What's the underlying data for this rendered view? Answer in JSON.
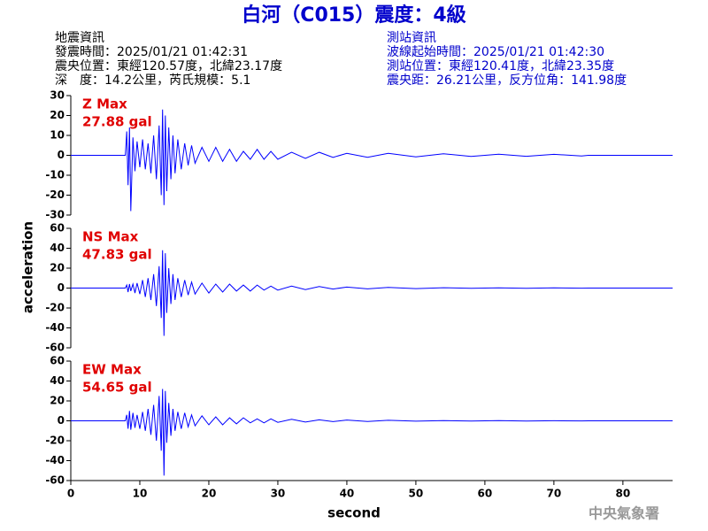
{
  "header": {
    "title": "白河（C015）震度：4級",
    "left": [
      "地震資訊",
      "發震時間：2025/01/21 01:42:31",
      "震央位置：東經120.57度，北緯23.17度",
      "深　度：14.2公里，芮氏規模：5.1"
    ],
    "right": [
      "測站資訊",
      "波線起始時間：2025/01/21 01:42:30",
      "測站位置：東經120.41度，北緯23.35度",
      "震央距：26.21公里，反方位角：141.98度"
    ]
  },
  "footer": "中央氣象署",
  "chart_data": [
    {
      "type": "line",
      "annotations": [
        "Z Max",
        "27.88 gal"
      ],
      "color": "#0000ff",
      "xlim": [
        0,
        87.2
      ],
      "ylim": [
        -30,
        30
      ],
      "yticks": [
        -30,
        -20,
        -10,
        0,
        10,
        20,
        30
      ],
      "x": [
        0,
        7.9,
        8.1,
        8.3,
        8.5,
        8.7,
        9.0,
        9.3,
        9.6,
        10.0,
        10.4,
        10.8,
        11.2,
        11.6,
        12.0,
        12.4,
        12.8,
        13.1,
        13.3,
        13.5,
        13.7,
        13.9,
        14.2,
        14.5,
        14.8,
        15.1,
        15.5,
        16.0,
        16.5,
        17.0,
        17.5,
        18.0,
        19.0,
        20.0,
        21.0,
        22.0,
        23.0,
        24.0,
        25.0,
        26.0,
        27.0,
        28.0,
        29.0,
        30.0,
        32,
        34,
        36,
        38,
        40,
        43,
        46,
        50,
        54,
        58,
        62,
        66,
        70,
        74,
        75,
        87.2
      ],
      "values": [
        0,
        0,
        12,
        -15,
        14,
        -28,
        9,
        -8,
        7,
        -6,
        8,
        -7,
        6,
        -9,
        10,
        -12,
        15,
        -20,
        23,
        -25,
        20,
        -18,
        14,
        -12,
        10,
        -9,
        8,
        -7,
        6,
        -5,
        5,
        -4,
        4,
        -3,
        4,
        -3,
        3,
        -3,
        2,
        -2,
        3,
        -2,
        2,
        -2,
        1.5,
        -1.5,
        1.5,
        -1,
        1,
        -1,
        1,
        -0.8,
        0.8,
        -0.6,
        0.6,
        -0.5,
        0.5,
        -0.3,
        0,
        0
      ]
    },
    {
      "type": "line",
      "annotations": [
        "NS Max",
        "47.83 gal"
      ],
      "ylabel": "acceleration",
      "color": "#0000ff",
      "xlim": [
        0,
        87.2
      ],
      "ylim": [
        -60,
        60
      ],
      "yticks": [
        -60,
        -40,
        -20,
        0,
        20,
        40,
        60
      ],
      "x": [
        0,
        7.9,
        8.1,
        8.3,
        8.5,
        8.7,
        9.0,
        9.3,
        9.6,
        10.0,
        10.4,
        10.8,
        11.2,
        11.6,
        12.0,
        12.4,
        12.8,
        13.1,
        13.3,
        13.5,
        13.7,
        13.9,
        14.2,
        14.5,
        14.8,
        15.1,
        15.5,
        16.0,
        16.5,
        17.0,
        17.5,
        18.0,
        19.0,
        20.0,
        21.0,
        22.0,
        23.0,
        24.0,
        25.0,
        26.0,
        27.0,
        28.0,
        29.0,
        30.0,
        32,
        34,
        36,
        38,
        40,
        43,
        46,
        50,
        54,
        58,
        62,
        66,
        70,
        74,
        75,
        87.2
      ],
      "values": [
        0,
        0,
        3,
        -4,
        4,
        -3,
        4,
        -5,
        5,
        -6,
        8,
        -9,
        10,
        -12,
        14,
        -18,
        22,
        -30,
        38,
        -48,
        35,
        -25,
        20,
        -16,
        14,
        -12,
        10,
        -9,
        8,
        -7,
        6,
        -6,
        5,
        -5,
        4,
        -4,
        4,
        -3,
        3,
        -3,
        3,
        -2,
        2,
        -2,
        2,
        -1.5,
        1.5,
        -1,
        1,
        -0.8,
        0.6,
        -0.5,
        0.4,
        -0.3,
        0.3,
        -0.2,
        0.2,
        -0.1,
        0,
        0
      ]
    },
    {
      "type": "line",
      "annotations": [
        "EW Max",
        "54.65 gal"
      ],
      "xlabel": "second",
      "color": "#0000ff",
      "xlim": [
        0,
        87.2
      ],
      "ylim": [
        -60,
        60
      ],
      "yticks": [
        -60,
        -40,
        -20,
        0,
        20,
        40,
        60
      ],
      "xticks": [
        0,
        10,
        20,
        30,
        40,
        50,
        60,
        70,
        80
      ],
      "x": [
        0,
        7.9,
        8.1,
        8.3,
        8.5,
        8.7,
        9.0,
        9.3,
        9.6,
        10.0,
        10.4,
        10.8,
        11.2,
        11.6,
        12.0,
        12.4,
        12.8,
        13.1,
        13.3,
        13.5,
        13.7,
        13.9,
        14.2,
        14.5,
        14.8,
        15.1,
        15.5,
        16.0,
        16.5,
        17.0,
        17.5,
        18.0,
        19.0,
        20.0,
        21.0,
        22.0,
        23.0,
        24.0,
        25.0,
        26.0,
        27.0,
        28.0,
        29.0,
        30.0,
        32,
        34,
        36,
        38,
        40,
        43,
        46,
        50,
        54,
        58,
        62,
        66,
        70,
        74,
        75,
        87.2
      ],
      "values": [
        0,
        0,
        6,
        -8,
        10,
        -9,
        8,
        -7,
        6,
        -8,
        9,
        -10,
        12,
        -14,
        16,
        -20,
        25,
        -30,
        32,
        -55,
        30,
        -22,
        18,
        -15,
        12,
        -10,
        9,
        -8,
        8,
        -6,
        6,
        -5,
        5,
        -4,
        4,
        -4,
        3,
        -3,
        3,
        -2,
        2,
        -2,
        2,
        -1.5,
        1.5,
        -1.2,
        1,
        -0.8,
        0.8,
        -0.6,
        0.5,
        -0.4,
        0.3,
        -0.3,
        0.2,
        -0.2,
        0.1,
        -0.1,
        0,
        0
      ]
    }
  ]
}
